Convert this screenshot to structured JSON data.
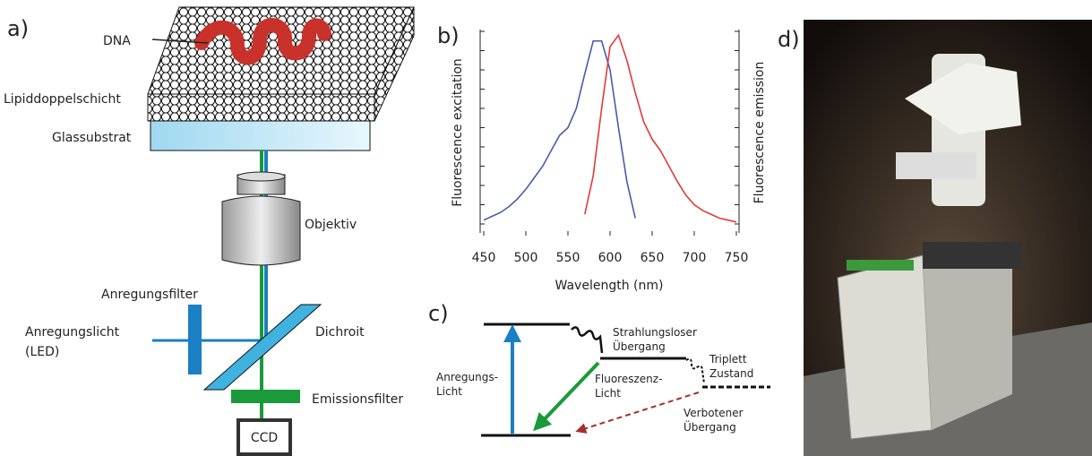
{
  "panel_a": {
    "label": "a)",
    "dna": "DNA",
    "bilayer": "Lipiddoppelschicht",
    "substrate": "Glassubstrat",
    "objective": "Objektiv",
    "excitation_filter": "Anregungsfilter",
    "excitation_light": "Anregungslicht",
    "excitation_source": "(LED)",
    "dichroic": "Dichroit",
    "emission_filter": "Emissionsfilter",
    "detector": "CCD"
  },
  "chart_data": {
    "type": "line",
    "title": "b)",
    "x_label": "Wavelength (nm)",
    "y_label": "Fluorescence excitation",
    "y2_label": "Fluorescence emission",
    "x": [
      450,
      460,
      470,
      480,
      490,
      500,
      510,
      520,
      530,
      540,
      550,
      560,
      570,
      580,
      590,
      600,
      610,
      620,
      630,
      640,
      650,
      660,
      670,
      680,
      690,
      700,
      710,
      720,
      730,
      740,
      750
    ],
    "series": [
      {
        "color": "#4a5aa8",
        "values": [
          2,
          4,
          6,
          9,
          13,
          18,
          24,
          30,
          38,
          46,
          50,
          60,
          78,
          95,
          95,
          80,
          50,
          22,
          3,
          null,
          null,
          null,
          null,
          null,
          null,
          null,
          null,
          null,
          null,
          null,
          null
        ]
      },
      {
        "color": "#e03a3a",
        "axis": "y2",
        "values": [
          null,
          null,
          null,
          null,
          null,
          null,
          null,
          null,
          null,
          null,
          null,
          null,
          5,
          25,
          60,
          92,
          98,
          85,
          68,
          53,
          44,
          38,
          30,
          22,
          15,
          10,
          7,
          5,
          3,
          2,
          1
        ]
      }
    ],
    "xlim": [
      450,
      750
    ],
    "xticks": [
      450,
      500,
      550,
      600,
      650,
      700,
      750
    ],
    "ylim": [
      0,
      100
    ],
    "y2lim": [
      0,
      100
    ]
  },
  "panel_c": {
    "label": "c)",
    "nonradiative_1": "Strahlungsloser",
    "nonradiative_2": "Übergang",
    "triplet_1": "Triplett",
    "triplet_2": "Zustand",
    "excitation_1": "Anregungs-",
    "excitation_2": "Licht",
    "fluorescence_1": "Fluoreszenz-",
    "fluorescence_2": "Licht",
    "forbidden_1": "Verbotener",
    "forbidden_2": "Übergang"
  },
  "panel_d": {
    "label": "d)"
  }
}
